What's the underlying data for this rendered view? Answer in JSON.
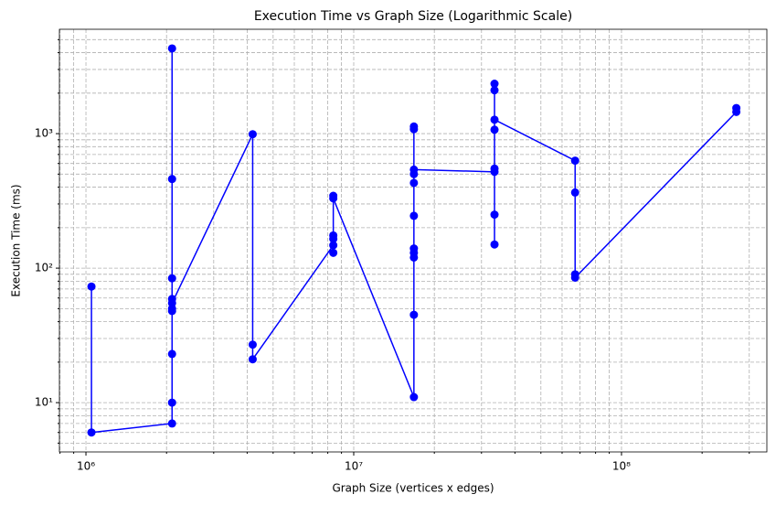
{
  "chart_data": {
    "type": "line",
    "title": "Execution Time vs Graph Size (Logarithmic Scale)",
    "x_label": "Graph Size (vertices x edges)",
    "y_label": "Execution Time (ms)",
    "xscale": "log",
    "yscale": "log",
    "grid": true,
    "marker": "circle",
    "series": [
      {
        "color": "#0000ff",
        "x": [
          1048576,
          1048576,
          2097152,
          2097152,
          2097152,
          2097152,
          2097152,
          2097152,
          2097152,
          2097152,
          2097152,
          2097152,
          4194304,
          4194304,
          4194304,
          8388608,
          8388608,
          8388608,
          8388608,
          8388608,
          8388608,
          16777216,
          16777216,
          16777216,
          16777216,
          16777216,
          16777216,
          16777216,
          16777216,
          16777216,
          16777216,
          16777216,
          33554432,
          33554432,
          33554432,
          33554432,
          33554432,
          33554432,
          33554432,
          33554432,
          67108864,
          67108864,
          67108864,
          67108864,
          268435456,
          268435456
        ],
        "values": [
          73,
          6,
          7,
          10,
          23,
          48,
          50,
          59,
          84,
          460,
          4300,
          55,
          990,
          27,
          21,
          148,
          175,
          165,
          130,
          345,
          330,
          11,
          45,
          120,
          130,
          140,
          245,
          1130,
          1080,
          430,
          500,
          540,
          520,
          550,
          150,
          250,
          1070,
          2350,
          2100,
          1270,
          630,
          365,
          90,
          85,
          1450,
          1550
        ]
      }
    ],
    "xlim": [
      796000,
      349000000
    ],
    "ylim": [
      4.3,
      5970
    ],
    "xticks": [
      {
        "value": 1000000,
        "label": "10⁶"
      },
      {
        "value": 10000000,
        "label": "10⁷"
      },
      {
        "value": 100000000,
        "label": "10⁸"
      }
    ],
    "yticks": [
      {
        "value": 10,
        "label": "10¹"
      },
      {
        "value": 100,
        "label": "10²"
      },
      {
        "value": 1000,
        "label": "10³"
      }
    ],
    "xminorticks": [
      800000,
      900000,
      2000000,
      3000000,
      4000000,
      5000000,
      6000000,
      7000000,
      8000000,
      9000000,
      20000000,
      30000000,
      40000000,
      50000000,
      60000000,
      70000000,
      80000000,
      90000000,
      200000000,
      300000000
    ],
    "yminorticks": [
      5,
      6,
      7,
      8,
      9,
      20,
      30,
      40,
      50,
      60,
      70,
      80,
      90,
      200,
      300,
      400,
      500,
      600,
      700,
      800,
      900,
      2000,
      3000,
      4000,
      5000
    ]
  }
}
